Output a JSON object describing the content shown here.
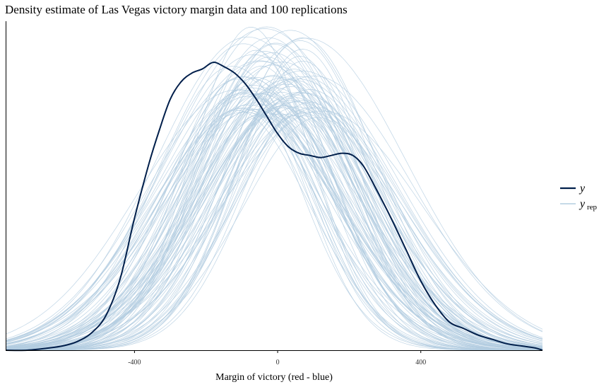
{
  "chart_data": {
    "type": "line",
    "title": "Density estimate of Las Vegas victory margin data and 100 replications",
    "xlabel": "Margin of victory (red - blue)",
    "ylabel": "",
    "xlim": [
      -760,
      740
    ],
    "ylim": [
      0,
      0.00152
    ],
    "x_ticks": [
      -400,
      0,
      400
    ],
    "x_tick_labels": [
      "-400",
      "0",
      "400"
    ],
    "grid": false,
    "legend": {
      "position": "right",
      "entries": [
        {
          "symbol": "y",
          "subscript": "",
          "color": "#011f4b"
        },
        {
          "symbol": "y",
          "subscript": "rep",
          "color": "#b3cde0"
        }
      ]
    },
    "series": [
      {
        "name": "y",
        "color": "#011f4b",
        "x": [
          -760,
          -700,
          -640,
          -600,
          -560,
          -520,
          -480,
          -440,
          -400,
          -360,
          -330,
          -300,
          -270,
          -240,
          -210,
          -180,
          -150,
          -120,
          -90,
          -60,
          -30,
          0,
          30,
          60,
          90,
          120,
          150,
          180,
          210,
          240,
          280,
          320,
          360,
          400,
          440,
          480,
          520,
          560,
          600,
          640,
          680,
          720,
          740
        ],
        "y": [
          0.0,
          0.0,
          1e-05,
          2e-05,
          4e-05,
          8e-05,
          0.00016,
          0.00033,
          0.00061,
          0.00086,
          0.00102,
          0.00116,
          0.00124,
          0.00128,
          0.0013,
          0.00133,
          0.00131,
          0.00128,
          0.00123,
          0.00116,
          0.00108,
          0.001,
          0.00094,
          0.00091,
          0.0009,
          0.00089,
          0.0009,
          0.00091,
          0.0009,
          0.00085,
          0.00073,
          0.0006,
          0.00046,
          0.00032,
          0.00021,
          0.00013,
          0.0001,
          7e-05,
          5e-05,
          3e-05,
          2e-05,
          1e-05,
          0.0
        ]
      },
      {
        "name": "y_rep",
        "color": "#b3cde0",
        "replications": 100,
        "mean_center": -20,
        "center_range": [
          -120,
          100
        ],
        "sd_range": [
          160,
          280
        ],
        "peak_range": [
          0.0011,
          0.0015
        ],
        "x_range": [
          -760,
          740
        ]
      }
    ]
  }
}
